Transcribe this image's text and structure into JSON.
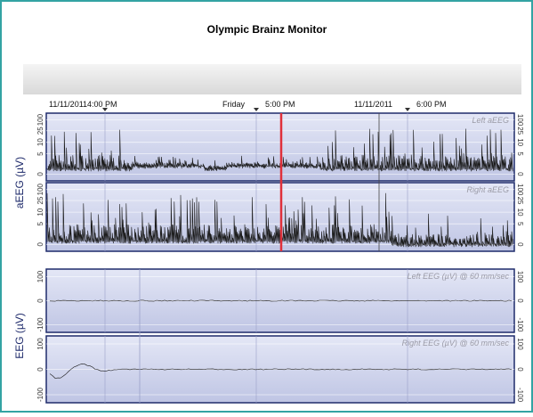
{
  "header": {
    "title": "Olympic Brainz Monitor"
  },
  "time_axis": [
    {
      "date": "11/11/2011",
      "time": "4:00 PM"
    },
    {
      "date": "Friday",
      "time": "5:00 PM"
    },
    {
      "date": "11/11/2011",
      "time": "6:00 PM"
    }
  ],
  "aeeg": {
    "axis_label": "aEEG (µV)",
    "ticks": [
      "100",
      "25",
      "10",
      "5",
      "0"
    ],
    "channels": [
      "Left aEEG",
      "Right aEEG"
    ]
  },
  "eeg": {
    "axis_label": "EEG (µV)",
    "ticks": [
      "100",
      "0",
      "-100"
    ],
    "channels": [
      "Left EEG  (µV) @ 60 mm/sec",
      "Right EEG (µV) @ 60 mm/sec"
    ]
  }
}
